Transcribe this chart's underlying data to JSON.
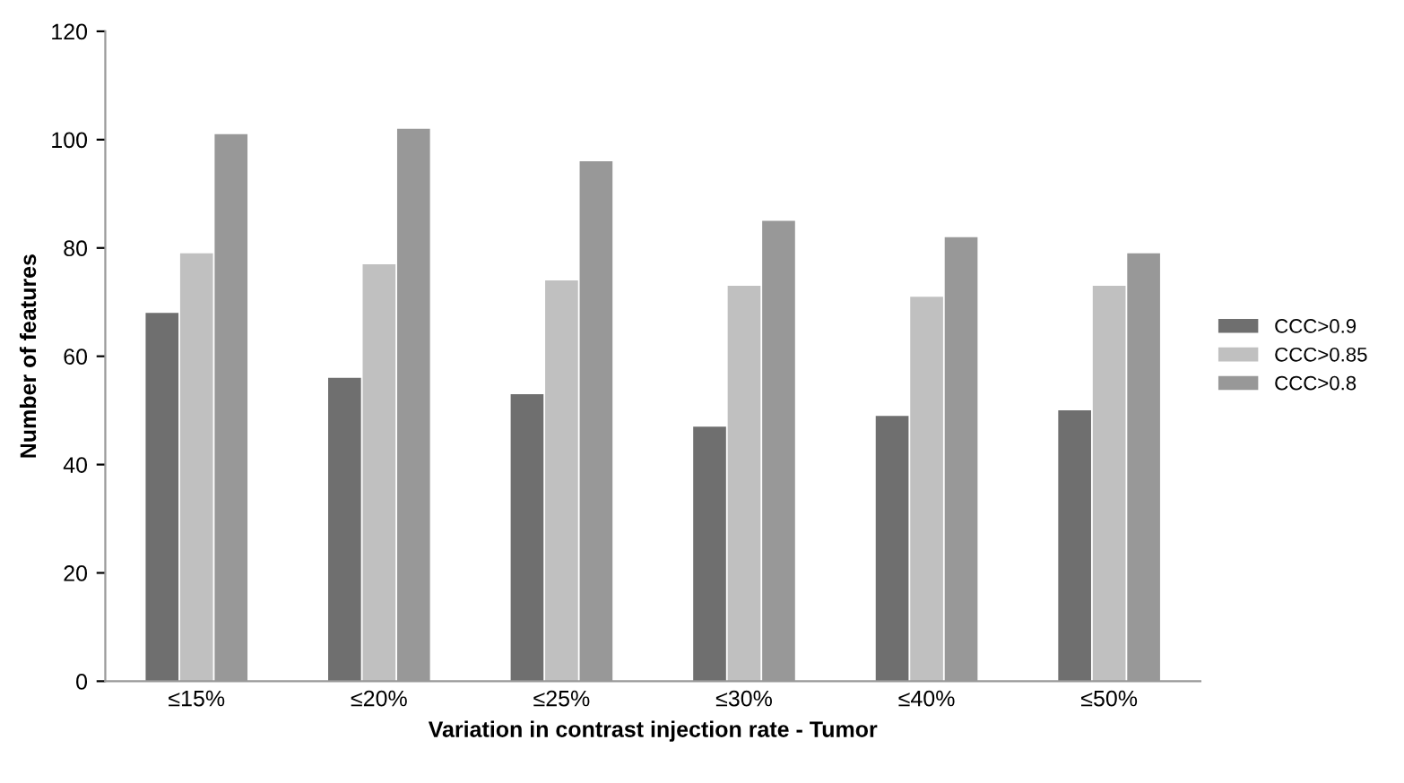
{
  "chart_data": {
    "type": "bar",
    "xlabel": "Variation in contrast injection rate - Tumor",
    "ylabel": "Number of features",
    "categories": [
      "≤15%",
      "≤20%",
      "≤25%",
      "≤30%",
      "≤40%",
      "≤50%"
    ],
    "series": [
      {
        "name": "CCC>0.9",
        "color": "#6f6f6f",
        "values": [
          68,
          56,
          53,
          47,
          49,
          50
        ]
      },
      {
        "name": "CCC>0.85",
        "color": "#c0c0c0",
        "values": [
          79,
          77,
          74,
          73,
          71,
          73
        ]
      },
      {
        "name": "CCC>0.8",
        "color": "#989898",
        "values": [
          101,
          102,
          96,
          85,
          82,
          79
        ]
      }
    ],
    "ylim": [
      0,
      120
    ],
    "yticks": [
      0,
      20,
      40,
      60,
      80,
      100,
      120
    ],
    "grid": false,
    "legend": "right"
  }
}
